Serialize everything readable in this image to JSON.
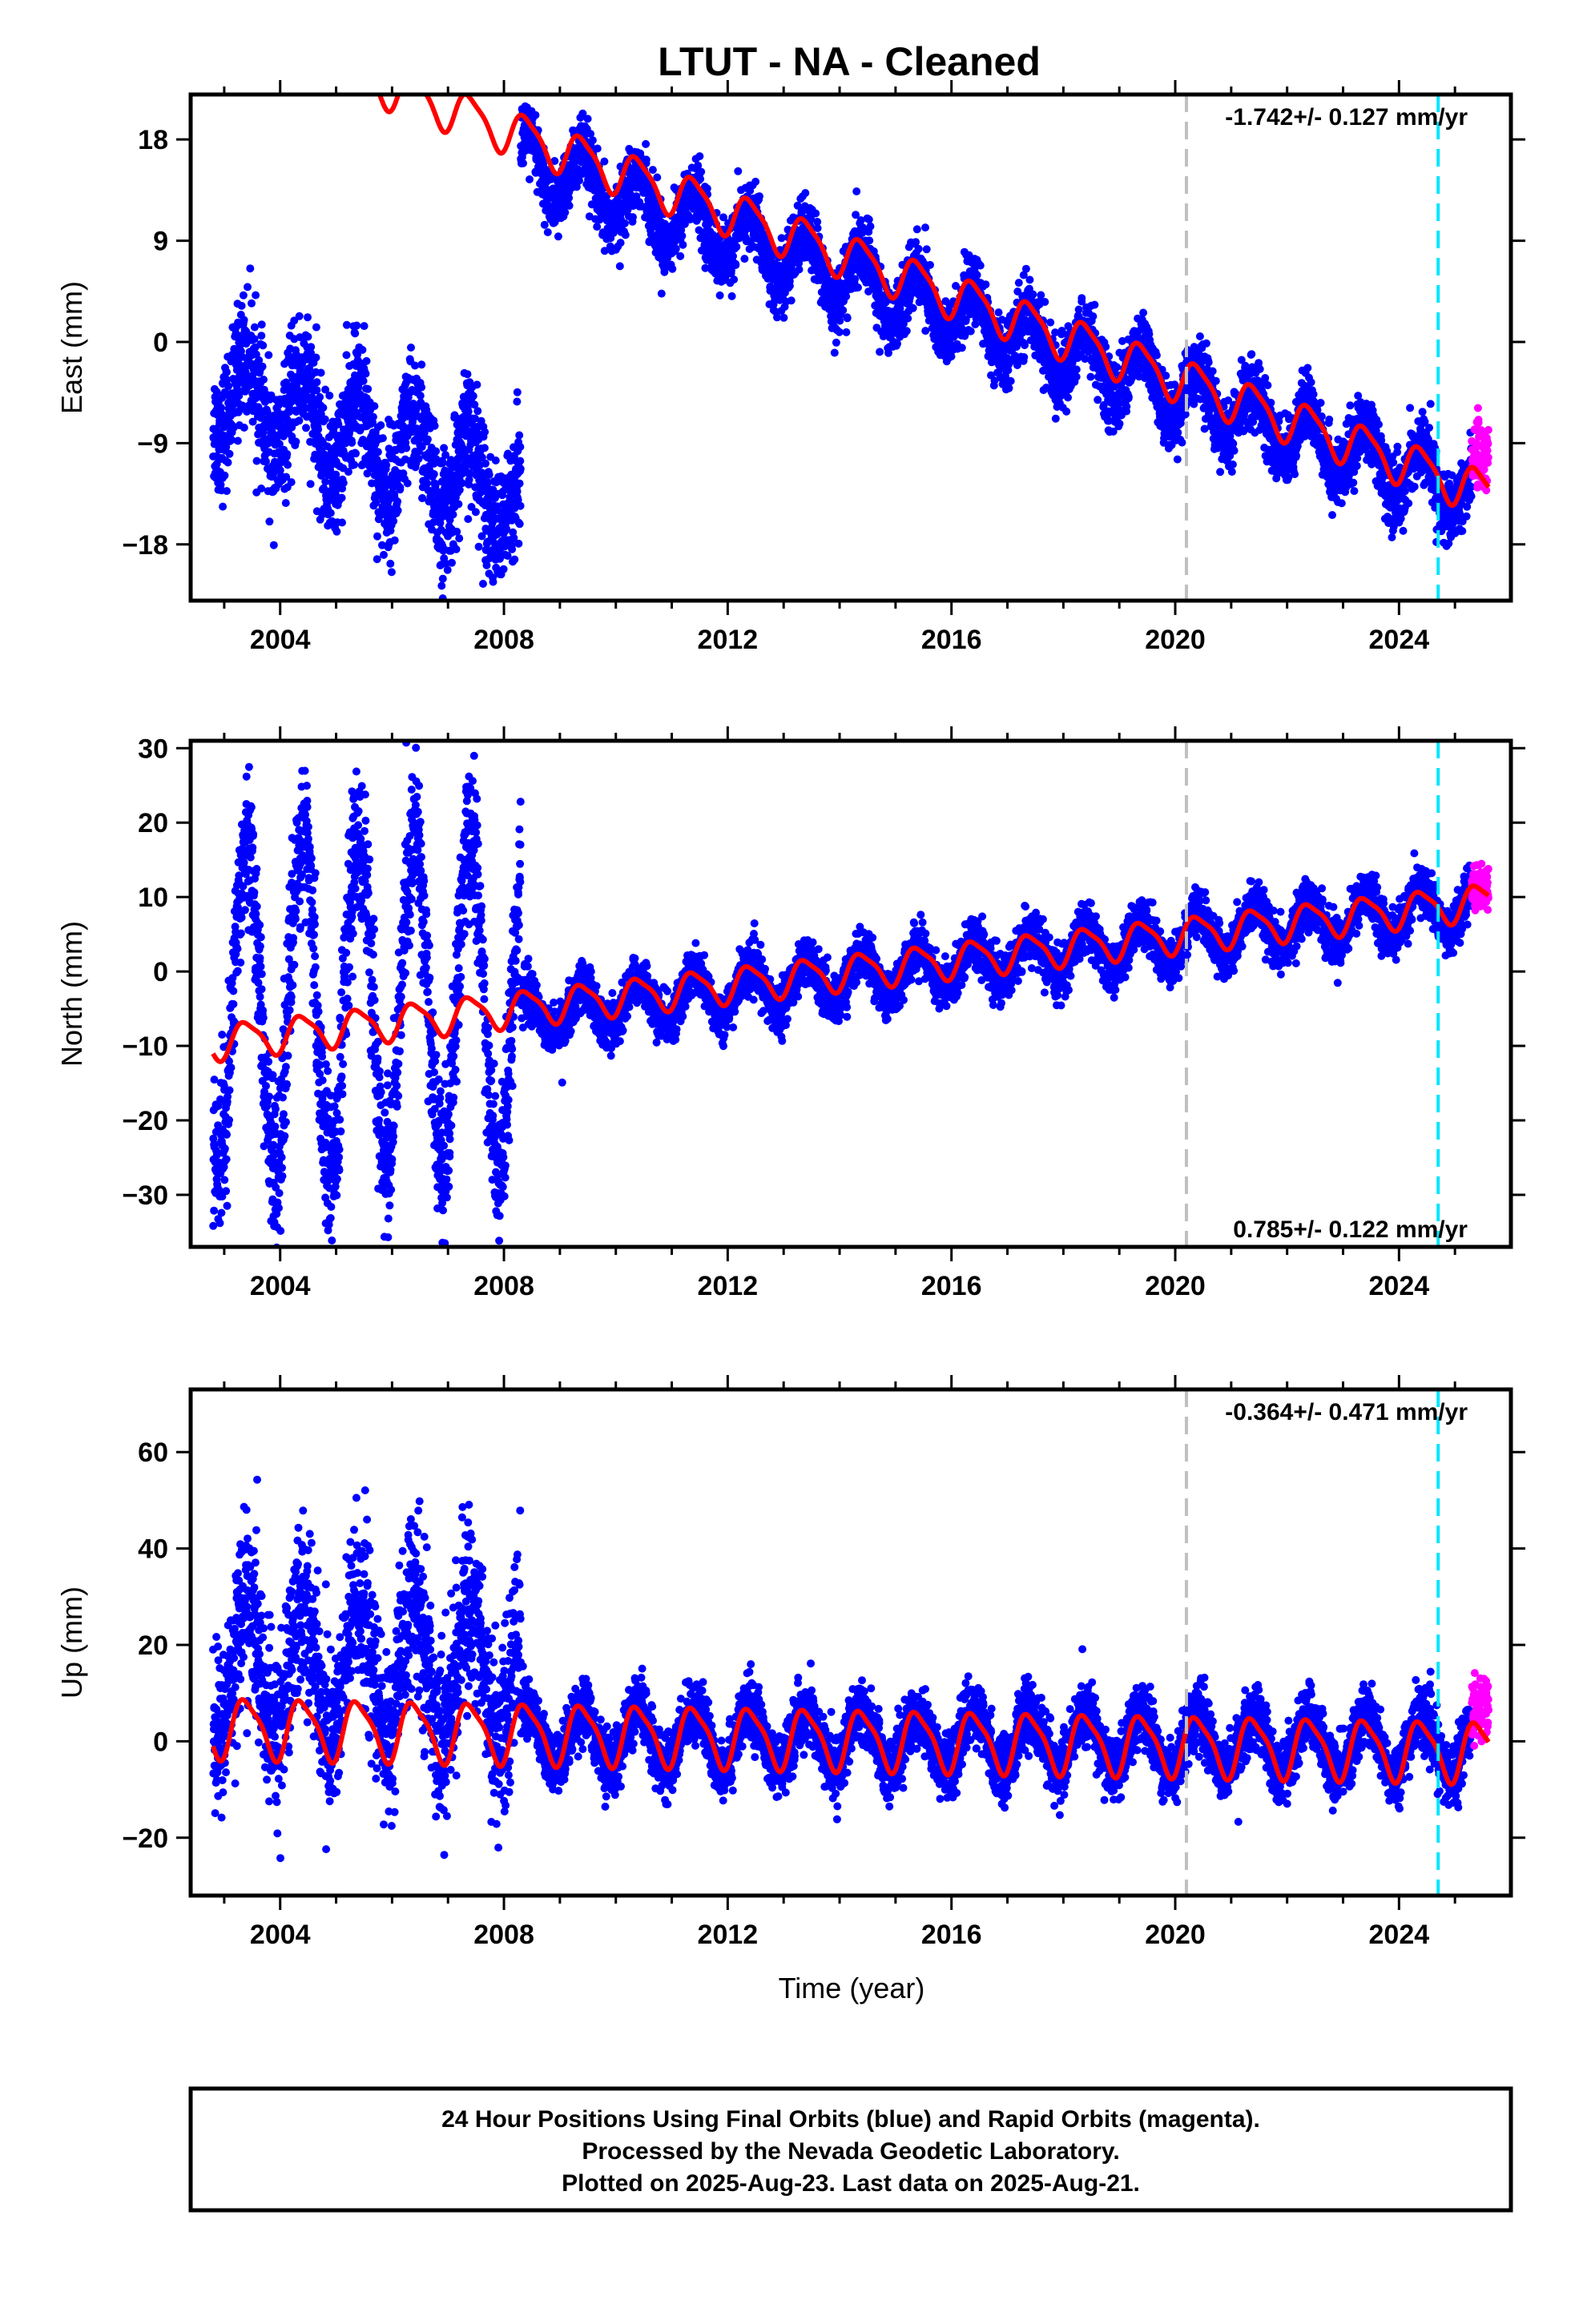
{
  "title": "LTUT  - NA - Cleaned",
  "colors": {
    "final_orbits": "#0000ff",
    "rapid_orbits": "#ff00ff",
    "model": "#ff0000",
    "reference_line_1": "#c0c0c0",
    "reference_line_2": "#00e5ff"
  },
  "x_axis": {
    "label": "Time (year)",
    "range": [
      2002.4,
      2026.0
    ],
    "ticks": [
      2004,
      2008,
      2012,
      2016,
      2020,
      2024
    ]
  },
  "chart_data": [
    {
      "type": "scatter",
      "component": "East",
      "ylabel": "East (mm)",
      "ylim": [
        -23,
        22
      ],
      "yticks": [
        18,
        9,
        0,
        -9,
        -18
      ],
      "rate_label": "-1.742+/- 0.127 mm/yr",
      "rate_position": "top-right",
      "reference_lines": [
        2020.2,
        2024.7
      ],
      "segments": [
        {
          "name": "Final Orbits",
          "x": [
            2002.8,
            2008.3
          ],
          "trend": [
            -4,
            -14
          ],
          "seasonal_amp": 4,
          "noise": 2.8
        },
        {
          "name": "Final Orbits",
          "x": [
            2008.3,
            2025.3
          ],
          "trend": [
            16,
            -13.5
          ],
          "seasonal_amp": 2.6,
          "noise": 1.5
        },
        {
          "name": "Rapid Orbits",
          "x": [
            2025.3,
            2025.6
          ],
          "trend": [
            -10,
            -10
          ],
          "seasonal_amp": 0,
          "noise": 1.6
        }
      ],
      "model": {
        "x": [
          2002.8,
          2025.6
        ],
        "trend": [
          28.5,
          -13.5
        ],
        "seasonal_amp": 1.9,
        "offset_shift": {
          "x": 2008.3,
          "value": 0
        }
      }
    },
    {
      "type": "scatter",
      "component": "North",
      "ylabel": "North (mm)",
      "ylim": [
        -37,
        31
      ],
      "yticks": [
        30,
        20,
        10,
        0,
        -10,
        -20,
        -30
      ],
      "rate_label": "0.785+/- 0.122 mm/yr",
      "rate_position": "bottom-right",
      "reference_lines": [
        2020.2,
        2024.7
      ],
      "segments": [
        {
          "name": "Final Orbits",
          "x": [
            2002.8,
            2008.3
          ],
          "trend": [
            -4,
            -4
          ],
          "seasonal_amp": 22,
          "noise": 5
        },
        {
          "name": "Final Orbits",
          "x": [
            2008.3,
            2025.3
          ],
          "trend": [
            -6,
            9
          ],
          "seasonal_amp": 3,
          "noise": 1.6
        },
        {
          "name": "Rapid Orbits",
          "x": [
            2025.3,
            2025.6
          ],
          "trend": [
            11,
            11
          ],
          "seasonal_amp": 0,
          "noise": 1.5
        }
      ],
      "model": {
        "x": [
          2002.8,
          2025.6
        ],
        "trend": [
          -9.5,
          9.5
        ],
        "seasonal_amp": 2.3
      }
    },
    {
      "type": "scatter",
      "component": "Up",
      "ylabel": "Up (mm)",
      "ylim": [
        -32,
        73
      ],
      "yticks": [
        60,
        40,
        20,
        0,
        -20
      ],
      "rate_label": "-0.364+/- 0.471 mm/yr",
      "rate_position": "top-right",
      "reference_lines": [
        2020.2,
        2024.7
      ],
      "segments": [
        {
          "name": "Final Orbits",
          "x": [
            2002.8,
            2008.3
          ],
          "trend": [
            15,
            15
          ],
          "seasonal_amp": 14,
          "noise": 9
        },
        {
          "name": "Final Orbits",
          "x": [
            2008.3,
            2025.3
          ],
          "trend": [
            1,
            -1
          ],
          "seasonal_amp": 6,
          "noise": 3.2
        },
        {
          "name": "Rapid Orbits",
          "x": [
            2025.3,
            2025.6
          ],
          "trend": [
            7,
            7
          ],
          "seasonal_amp": 0,
          "noise": 3.5
        }
      ],
      "model": {
        "x": [
          2002.8,
          2025.6
        ],
        "trend": [
          3,
          -2
        ],
        "seasonal_amp": 6
      }
    }
  ],
  "footer": {
    "line1": "24 Hour Positions Using Final Orbits (blue) and Rapid Orbits (magenta).",
    "line2": "Processed by the Nevada Geodetic Laboratory.",
    "line3": "Plotted on 2025-Aug-23. Last data on 2025-Aug-21."
  }
}
